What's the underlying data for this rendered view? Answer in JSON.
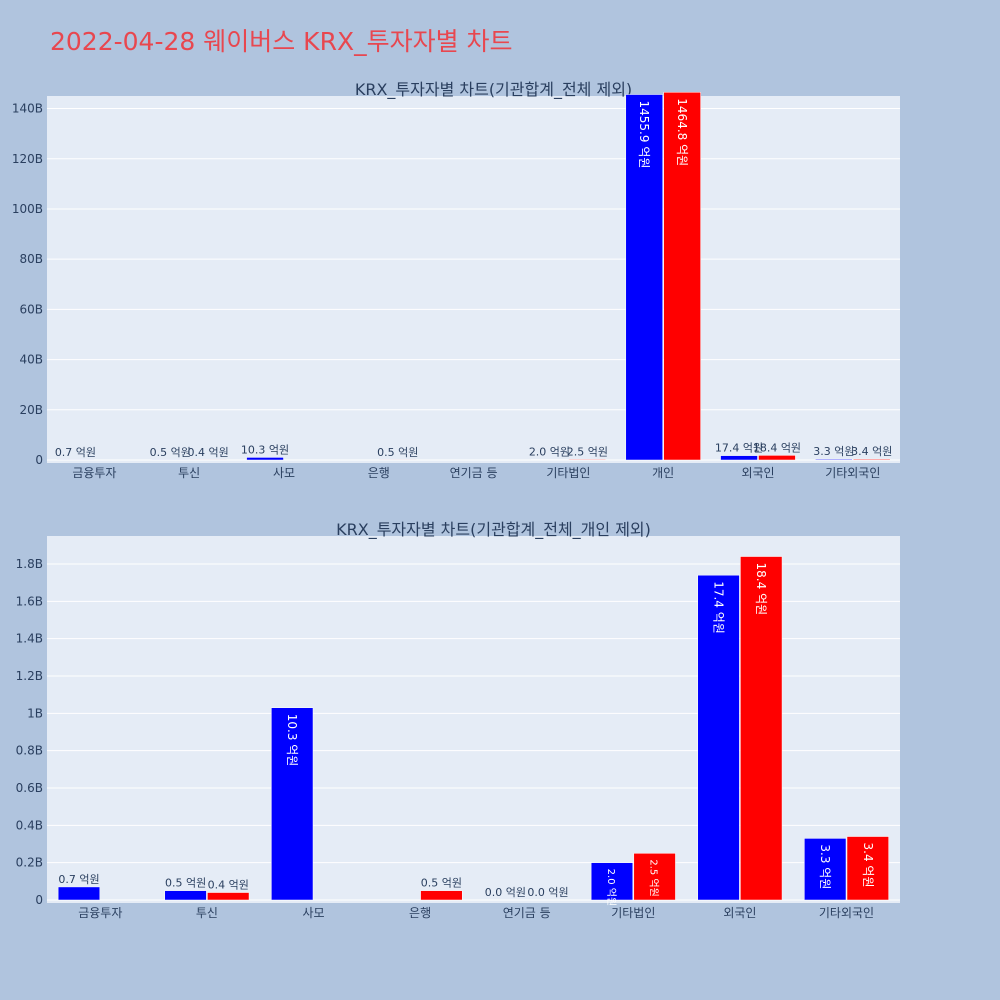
{
  "page_title": "2022-04-28 웨이버스 KRX_투자자별 차트",
  "colors": {
    "series_a": "#0000ff",
    "series_b": "#ff0000",
    "plot_bg": "#e5ecf6",
    "page_bg": "#b0c4de",
    "title": "#e8474f"
  },
  "chart_data": [
    {
      "type": "bar",
      "title": "KRX_투자자별 차트(기관합계_전체 제외)",
      "categories": [
        "금융투자",
        "투신",
        "사모",
        "은행",
        "연기금 등",
        "기타법인",
        "개인",
        "외국인",
        "기타외국인"
      ],
      "ylim": [
        0,
        145
      ],
      "ytick_values": [
        0,
        20,
        40,
        60,
        80,
        100,
        120,
        140
      ],
      "ytick_labels": [
        "0",
        "20B",
        "40B",
        "60B",
        "80B",
        "100B",
        "120B",
        "140B"
      ],
      "grid": true,
      "series": [
        {
          "values": [
            0.07,
            0.05,
            1.03,
            0,
            0.0,
            0.2,
            145.59,
            1.74,
            0.33
          ],
          "labels": [
            "0.7 억원",
            "0.5 억원",
            "10.3 억원",
            "",
            "",
            "2.0 억원",
            "1455.9 억원",
            "17.4 억원",
            "3.3 억원"
          ]
        },
        {
          "values": [
            0,
            0.04,
            0,
            0.05,
            0.0,
            0.25,
            146.48,
            1.84,
            0.34
          ],
          "labels": [
            "",
            "0.4 억원",
            "",
            "0.5 억원",
            "",
            "2.5 억원",
            "1464.8 억원",
            "18.4 억원",
            "3.4 억원"
          ]
        }
      ]
    },
    {
      "type": "bar",
      "title": "KRX_투자자별 차트(기관합계_전체_개인 제외)",
      "categories": [
        "금융투자",
        "투신",
        "사모",
        "은행",
        "연기금 등",
        "기타법인",
        "외국인",
        "기타외국인"
      ],
      "ylim": [
        0,
        1.95
      ],
      "ytick_values": [
        0,
        0.2,
        0.4,
        0.6,
        0.8,
        1.0,
        1.2,
        1.4,
        1.6,
        1.8
      ],
      "ytick_labels": [
        "0",
        "0.2B",
        "0.4B",
        "0.6B",
        "0.8B",
        "1B",
        "1.2B",
        "1.4B",
        "1.6B",
        "1.8B"
      ],
      "grid": true,
      "series": [
        {
          "values": [
            0.07,
            0.05,
            1.03,
            0,
            0.0,
            0.2,
            1.74,
            0.33
          ],
          "labels": [
            "0.7 억원",
            "0.5 억원",
            "10.3 억원",
            "",
            "0.0 억원",
            "2.0 억원",
            "17.4 억원",
            "3.3 억원"
          ]
        },
        {
          "values": [
            0,
            0.04,
            0,
            0.05,
            0.0,
            0.25,
            1.84,
            0.34
          ],
          "labels": [
            "",
            "0.4 억원",
            "",
            "0.5 억원",
            "0.0 억원",
            "2.5 억원",
            "18.4 억원",
            "3.4 억원"
          ]
        }
      ]
    }
  ]
}
